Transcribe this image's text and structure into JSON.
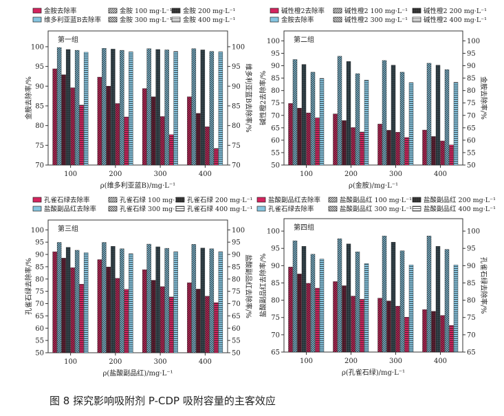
{
  "caption": "图 8 探究影响吸附剂 P-CDP 吸附容量的主客效应",
  "colors": {
    "primary": "#d4245e",
    "primary_dark": "#5b1c30",
    "secondary": "#86c5e0",
    "secondary_dark": "#34444c",
    "axis": "#333333"
  },
  "chart_data": [
    {
      "type": "bar",
      "title": "第一组",
      "legend": {
        "primary": "金胺去除率",
        "secondary": "维多利亚蓝B去除率",
        "conc": [
          "金胺 100 mg·L⁻¹",
          "金胺 200 mg·L⁻¹",
          "金胺 300 mg·L⁻¹",
          "金胺 400 mg·L⁻¹"
        ]
      },
      "xlabel": "ρ(维多利亚蓝B)/mg·L⁻¹",
      "ylabel_left": "金胺去除率/%",
      "ylabel_right": "维多利亚蓝B去除率/%",
      "ylim": [
        70,
        104
      ],
      "yticks": [
        70,
        75,
        80,
        85,
        90,
        95,
        100
      ],
      "categories": [
        "100",
        "200",
        "300",
        "400"
      ],
      "series": [
        {
          "kind": "primary",
          "conc": 0,
          "values": [
            94.4,
            92.3,
            89.4,
            87.3
          ]
        },
        {
          "kind": "secondary",
          "conc": 0,
          "values": [
            99.8,
            99.6,
            99.5,
            99.5
          ]
        },
        {
          "kind": "primary",
          "conc": 1,
          "values": [
            92.9,
            90.0,
            87.3,
            83.1
          ]
        },
        {
          "kind": "secondary",
          "conc": 1,
          "values": [
            99.3,
            99.4,
            99.3,
            99.2
          ]
        },
        {
          "kind": "primary",
          "conc": 2,
          "values": [
            89.6,
            85.6,
            82.3,
            79.7
          ]
        },
        {
          "kind": "secondary",
          "conc": 2,
          "values": [
            99.1,
            99.1,
            99.2,
            98.8
          ]
        },
        {
          "kind": "primary",
          "conc": 3,
          "values": [
            85.2,
            82.2,
            77.7,
            74.2
          ]
        },
        {
          "kind": "secondary",
          "conc": 3,
          "values": [
            98.6,
            98.7,
            98.8,
            98.7
          ]
        }
      ]
    },
    {
      "type": "bar",
      "title": "第二组",
      "legend": {
        "primary": "碱性橙2去除率",
        "secondary": "金胺去除率",
        "conc": [
          "碱性橙2 100 mg·L⁻¹",
          "碱性橙2 200 mg·L⁻¹",
          "碱性橙2 300 mg·L⁻¹",
          "碱性橙2 400 mg·L⁻¹"
        ]
      },
      "xlabel": "ρ(金胺)/mg·L⁻¹",
      "ylabel_left": "碱性橙2去除率/%",
      "ylabel_right": "金胺去除率/%",
      "ylim": [
        50,
        104
      ],
      "yticks": [
        50,
        55,
        60,
        65,
        70,
        75,
        80,
        85,
        90,
        95,
        100
      ],
      "categories": [
        "100",
        "200",
        "300",
        "400"
      ],
      "series": [
        {
          "kind": "primary",
          "conc": 0,
          "values": [
            74.8,
            70.6,
            66.5,
            64.1
          ]
        },
        {
          "kind": "secondary",
          "conc": 0,
          "values": [
            92.5,
            93.8,
            92.1,
            91.0
          ]
        },
        {
          "kind": "primary",
          "conc": 1,
          "values": [
            72.9,
            67.9,
            64.0,
            61.5
          ]
        },
        {
          "kind": "secondary",
          "conc": 1,
          "values": [
            90.5,
            91.7,
            90.2,
            90.2
          ]
        },
        {
          "kind": "primary",
          "conc": 2,
          "values": [
            71.0,
            65.1,
            63.2,
            59.7
          ]
        },
        {
          "kind": "secondary",
          "conc": 2,
          "values": [
            87.4,
            86.8,
            87.4,
            88.4
          ]
        },
        {
          "kind": "primary",
          "conc": 3,
          "values": [
            69.0,
            63.3,
            61.1,
            58.1
          ]
        },
        {
          "kind": "secondary",
          "conc": 3,
          "values": [
            84.9,
            84.2,
            83.2,
            83.3
          ]
        }
      ]
    },
    {
      "type": "bar",
      "title": "第三组",
      "legend": {
        "primary": "孔雀石绿去除率",
        "secondary": "盐酸副品红去除率",
        "conc": [
          "孔雀石绿 100 mg·L⁻¹",
          "孔雀石绿 200 mg·L⁻¹",
          "孔雀石绿 300 mg·L⁻¹",
          "孔雀石绿 400 mg·L⁻¹"
        ]
      },
      "xlabel": "ρ(盐酸副品红)/mg·L⁻¹",
      "ylabel_left": "孔雀石绿去除率/%",
      "ylabel_right": "盐酸副品红去除率/%",
      "ylim": [
        50,
        104
      ],
      "yticks": [
        50,
        55,
        60,
        65,
        70,
        75,
        80,
        85,
        90,
        95,
        100
      ],
      "categories": [
        "100",
        "200",
        "300",
        "400"
      ],
      "series": [
        {
          "kind": "primary",
          "conc": 0,
          "values": [
            91.1,
            87.9,
            83.8,
            78.5
          ]
        },
        {
          "kind": "secondary",
          "conc": 0,
          "values": [
            94.9,
            94.9,
            94.2,
            94.1
          ]
        },
        {
          "kind": "primary",
          "conc": 1,
          "values": [
            88.5,
            84.9,
            79.5,
            75.9
          ]
        },
        {
          "kind": "secondary",
          "conc": 1,
          "values": [
            92.9,
            93.3,
            93.1,
            92.6
          ]
        },
        {
          "kind": "primary",
          "conc": 2,
          "values": [
            84.6,
            80.3,
            76.9,
            73.0
          ]
        },
        {
          "kind": "secondary",
          "conc": 2,
          "values": [
            91.7,
            92.3,
            92.5,
            92.3
          ]
        },
        {
          "kind": "primary",
          "conc": 3,
          "values": [
            77.9,
            75.8,
            72.7,
            70.4
          ]
        },
        {
          "kind": "secondary",
          "conc": 3,
          "values": [
            90.7,
            90.3,
            91.1,
            91.1
          ]
        }
      ]
    },
    {
      "type": "bar",
      "title": "第四组",
      "legend": {
        "primary": "盐酸副品红去除率",
        "secondary": "孔雀石绿去除率",
        "conc": [
          "盐酸副品红 100 mg·L⁻¹",
          "盐酸副品红 200 mg·L⁻¹",
          "盐酸副品红 300 mg·L⁻¹",
          "盐酸副品红 400 mg·L⁻¹"
        ]
      },
      "xlabel": "ρ(孔雀石绿)/mg·L⁻¹",
      "ylabel_left": "盐酸副品红去除率/%",
      "ylabel_right": "孔雀石绿去除率/%",
      "ylim": [
        65,
        103.6
      ],
      "yticks": [
        65,
        70,
        75,
        80,
        85,
        90,
        95,
        100
      ],
      "categories": [
        "100",
        "200",
        "300",
        "400"
      ],
      "series": [
        {
          "kind": "primary",
          "conc": 0,
          "values": [
            89.6,
            85.4,
            80.6,
            77.3
          ]
        },
        {
          "kind": "secondary",
          "conc": 0,
          "values": [
            97.2,
            97.8,
            98.6,
            98.6
          ]
        },
        {
          "kind": "primary",
          "conc": 1,
          "values": [
            87.6,
            84.2,
            79.8,
            76.8
          ]
        },
        {
          "kind": "secondary",
          "conc": 1,
          "values": [
            95.6,
            96.3,
            96.8,
            95.6
          ]
        },
        {
          "kind": "primary",
          "conc": 2,
          "values": [
            84.9,
            81.2,
            78.3,
            75.6
          ]
        },
        {
          "kind": "secondary",
          "conc": 2,
          "values": [
            93.3,
            94.0,
            94.3,
            94.7
          ]
        },
        {
          "kind": "primary",
          "conc": 3,
          "values": [
            83.5,
            80.3,
            75.1,
            72.7
          ]
        },
        {
          "kind": "secondary",
          "conc": 3,
          "values": [
            91.9,
            90.6,
            90.2,
            90.2
          ]
        }
      ]
    }
  ]
}
